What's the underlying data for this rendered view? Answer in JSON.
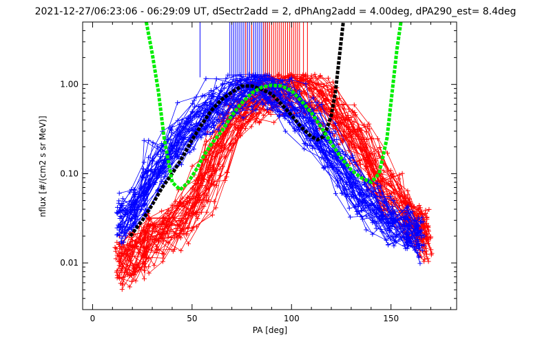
{
  "chart_data": {
    "type": "line",
    "title": "2021-12-27/06:23:06 - 06:29:09 UT, dSectr2add = 2, dPhAng2add = 4.00deg, dPA290_est=   8.4deg",
    "xlabel": "PA [deg]",
    "ylabel": "nflux [#/(cm2 s sr MeV)]",
    "xlim": [
      -5,
      183
    ],
    "ylim": [
      0.003,
      5
    ],
    "y_scale": "log",
    "x_ticks": [
      0,
      50,
      100,
      150
    ],
    "x_tick_labels": [
      "0",
      "50",
      "100",
      "150"
    ],
    "y_ticks": [
      0.01,
      0.1,
      1.0
    ],
    "y_tick_labels": [
      "0.01",
      "0.10",
      "1.00"
    ],
    "grid": false,
    "colors": {
      "blue_series": "#0000ff",
      "red_series": "#ff0000",
      "green_fit": "#00ee00",
      "black_fit": "#000000"
    },
    "blue_peak_marker_pa": [
      54,
      69,
      70,
      71,
      72,
      73,
      74,
      75,
      76,
      77,
      78,
      79,
      80,
      81,
      82,
      83,
      84,
      85,
      86,
      87,
      88
    ],
    "red_peak_marker_pa": [
      77,
      80,
      86,
      87,
      88,
      89,
      90,
      91,
      92,
      93,
      94,
      95,
      96,
      97,
      98,
      99,
      100,
      101,
      102,
      103,
      104,
      106,
      108
    ],
    "blue_pa_grid": [
      14,
      20,
      26,
      32,
      40,
      48,
      56,
      62,
      70,
      78,
      86,
      94,
      102,
      110,
      118,
      126,
      134,
      142,
      150,
      158,
      164
    ],
    "blue_typical_profile": [
      0.03,
      0.04,
      0.07,
      0.13,
      0.22,
      0.33,
      0.5,
      0.65,
      0.85,
      0.97,
      0.95,
      0.8,
      0.55,
      0.35,
      0.2,
      0.11,
      0.06,
      0.04,
      0.03,
      0.025,
      0.02
    ],
    "red_pa_grid": [
      14,
      20,
      26,
      32,
      40,
      48,
      56,
      62,
      70,
      78,
      86,
      94,
      102,
      110,
      118,
      126,
      134,
      142,
      150,
      158,
      164,
      168
    ],
    "red_typical_profile": [
      0.01,
      0.012,
      0.015,
      0.02,
      0.025,
      0.035,
      0.07,
      0.16,
      0.35,
      0.58,
      0.78,
      0.93,
      0.95,
      0.85,
      0.65,
      0.42,
      0.25,
      0.12,
      0.06,
      0.035,
      0.025,
      0.02
    ],
    "green_fit": {
      "x": [
        27,
        30,
        33,
        36,
        40,
        44,
        48,
        52,
        56,
        60,
        65,
        70,
        75,
        80,
        85,
        90,
        95,
        100,
        105,
        110,
        115,
        120,
        125,
        130,
        135,
        140,
        144,
        148,
        151,
        153,
        155
      ],
      "y": [
        5,
        2.2,
        0.85,
        0.25,
        0.08,
        0.066,
        0.08,
        0.11,
        0.16,
        0.22,
        0.3,
        0.45,
        0.62,
        0.8,
        0.93,
        0.98,
        0.96,
        0.85,
        0.65,
        0.48,
        0.33,
        0.22,
        0.15,
        0.11,
        0.09,
        0.08,
        0.1,
        0.25,
        1.0,
        2.5,
        5
      ]
    },
    "black_fit": {
      "x": [
        19,
        25,
        30,
        35,
        40,
        45,
        50,
        55,
        60,
        65,
        70,
        75,
        80,
        85,
        90,
        95,
        100,
        105,
        110,
        113,
        116,
        118,
        120,
        122,
        124,
        126
      ],
      "y": [
        0.02,
        0.03,
        0.045,
        0.07,
        0.1,
        0.15,
        0.24,
        0.36,
        0.52,
        0.68,
        0.82,
        0.96,
        0.96,
        0.88,
        0.78,
        0.6,
        0.45,
        0.33,
        0.26,
        0.24,
        0.26,
        0.33,
        0.45,
        0.8,
        2.0,
        5
      ]
    }
  }
}
